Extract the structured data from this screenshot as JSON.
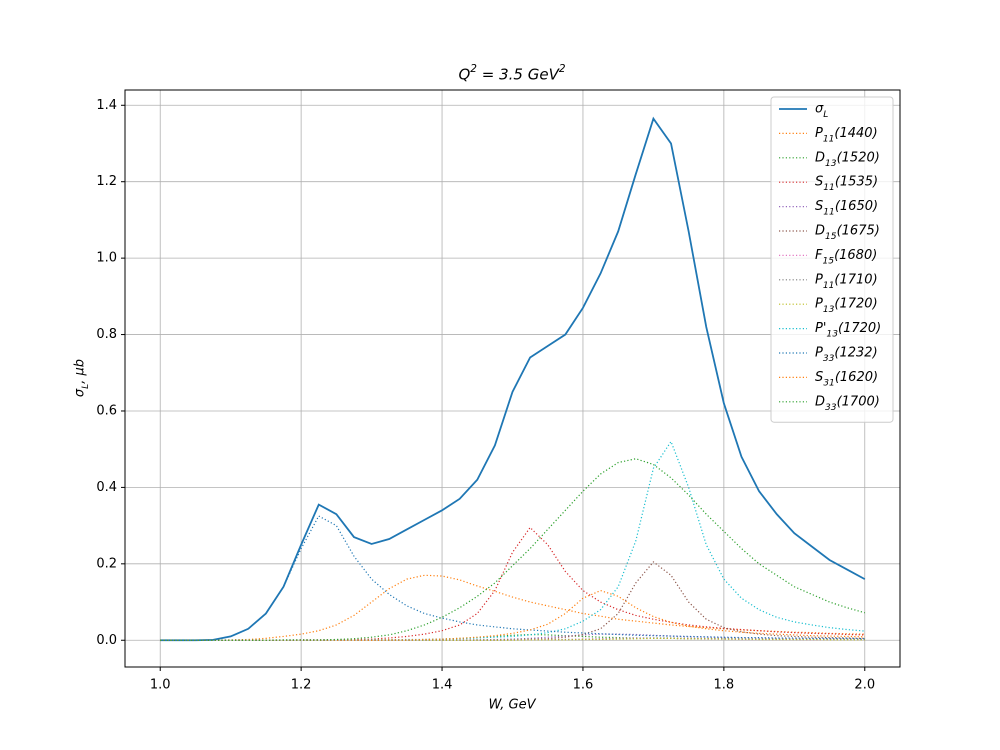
{
  "chart_data": {
    "type": "line",
    "title": "Q^{2} = 3.5 GeV^{2}",
    "x_label": "W, GeV",
    "y_label": "σ_{L}, μb",
    "x": [
      1.0,
      1.025,
      1.05,
      1.075,
      1.1,
      1.125,
      1.15,
      1.175,
      1.2,
      1.225,
      1.25,
      1.275,
      1.3,
      1.325,
      1.35,
      1.375,
      1.4,
      1.425,
      1.45,
      1.475,
      1.5,
      1.525,
      1.55,
      1.575,
      1.6,
      1.625,
      1.65,
      1.675,
      1.7,
      1.725,
      1.75,
      1.775,
      1.8,
      1.825,
      1.85,
      1.875,
      1.9,
      1.925,
      1.95,
      1.975,
      2.0
    ],
    "xlim": [
      0.95,
      2.05
    ],
    "ylim": [
      -0.07,
      1.44
    ],
    "xticks": [
      {
        "value": 1.0,
        "label": "1.0"
      },
      1.2,
      1.4,
      1.6,
      1.8,
      {
        "value": 2.0,
        "label": "2.0"
      }
    ],
    "yticks": [
      {
        "value": 0.0,
        "label": "0.0"
      },
      0.2,
      0.4,
      0.6,
      0.8,
      {
        "value": 1.0,
        "label": "1.0"
      },
      1.2,
      1.4
    ],
    "grid": true,
    "legend": "upper right",
    "series": [
      {
        "name": "σ_{L}",
        "color": "#1f77b4",
        "style": "solid",
        "values": [
          0,
          0,
          0,
          0.001,
          0.01,
          0.03,
          0.07,
          0.14,
          0.25,
          0.355,
          0.33,
          0.27,
          0.252,
          0.265,
          0.29,
          0.315,
          0.34,
          0.37,
          0.42,
          0.51,
          0.65,
          0.74,
          0.77,
          0.8,
          0.87,
          0.96,
          1.07,
          1.22,
          1.365,
          1.3,
          1.07,
          0.82,
          0.62,
          0.48,
          0.39,
          0.33,
          0.28,
          0.245,
          0.21,
          0.185,
          0.16
        ]
      },
      {
        "name": "P_{11}(1440)",
        "color": "#ff7f0e",
        "style": "dotted",
        "values": [
          0,
          0,
          0,
          0,
          0.001,
          0.002,
          0.005,
          0.01,
          0.016,
          0.025,
          0.04,
          0.065,
          0.1,
          0.135,
          0.16,
          0.17,
          0.168,
          0.158,
          0.142,
          0.128,
          0.113,
          0.1,
          0.09,
          0.08,
          0.07,
          0.063,
          0.055,
          0.05,
          0.045,
          0.04,
          0.036,
          0.033,
          0.03,
          0.027,
          0.025,
          0.023,
          0.021,
          0.02,
          0.018,
          0.017,
          0.016
        ]
      },
      {
        "name": "D_{13}(1520)",
        "color": "#2ca02c",
        "style": "dotted",
        "values": [
          0,
          0,
          0,
          0,
          0,
          0,
          0,
          0,
          0,
          0,
          0,
          0,
          0.001,
          0.001,
          0.001,
          0.002,
          0.003,
          0.005,
          0.007,
          0.01,
          0.013,
          0.015,
          0.014,
          0.012,
          0.01,
          0.008,
          0.007,
          0.006,
          0.005,
          0.005,
          0.004,
          0.004,
          0.004,
          0.004,
          0.003,
          0.003,
          0.003,
          0.003,
          0.003,
          0.003,
          0.003
        ]
      },
      {
        "name": "S_{11}(1535)",
        "color": "#d62728",
        "style": "dotted",
        "values": [
          0,
          0,
          0,
          0,
          0,
          0,
          0,
          0,
          0.001,
          0.001,
          0.001,
          0.002,
          0.003,
          0.006,
          0.01,
          0.016,
          0.025,
          0.04,
          0.07,
          0.13,
          0.23,
          0.295,
          0.25,
          0.18,
          0.13,
          0.1,
          0.08,
          0.065,
          0.055,
          0.047,
          0.04,
          0.035,
          0.031,
          0.028,
          0.025,
          0.022,
          0.02,
          0.018,
          0.017,
          0.015,
          0.014
        ]
      },
      {
        "name": "S_{11}(1650)",
        "color": "#9467bd",
        "style": "dotted",
        "values": [
          0,
          0,
          0,
          0,
          0,
          0,
          0,
          0,
          0,
          0,
          0,
          0,
          0,
          0,
          0,
          0,
          0.001,
          0.001,
          0.001,
          0.002,
          0.003,
          0.005,
          0.008,
          0.011,
          0.014,
          0.016,
          0.016,
          0.015,
          0.013,
          0.011,
          0.009,
          0.008,
          0.007,
          0.006,
          0.005,
          0.005,
          0.004,
          0.004,
          0.004,
          0.003,
          0.003
        ]
      },
      {
        "name": "D_{15}(1675)",
        "color": "#8c564b",
        "style": "dotted",
        "values": [
          0,
          0,
          0,
          0,
          0,
          0,
          0,
          0,
          0,
          0,
          0,
          0,
          0,
          0,
          0,
          0,
          0,
          0,
          0.001,
          0.001,
          0.002,
          0.003,
          0.004,
          0.008,
          0.015,
          0.03,
          0.07,
          0.15,
          0.205,
          0.17,
          0.1,
          0.055,
          0.033,
          0.022,
          0.016,
          0.012,
          0.01,
          0.008,
          0.007,
          0.006,
          0.005
        ]
      },
      {
        "name": "F_{15}(1680)",
        "color": "#e377c2",
        "style": "dotted",
        "values": [
          0,
          0,
          0,
          0,
          0,
          0,
          0,
          0,
          0,
          0,
          0,
          0,
          0,
          0,
          0,
          0,
          0,
          0,
          0,
          0,
          0.001,
          0.001,
          0.002,
          0.002,
          0.003,
          0.004,
          0.005,
          0.006,
          0.006,
          0.005,
          0.004,
          0.003,
          0.003,
          0.002,
          0.002,
          0.002,
          0.002,
          0.001,
          0.001,
          0.001,
          0.001
        ]
      },
      {
        "name": "P_{11}(1710)",
        "color": "#7f7f7f",
        "style": "dotted",
        "values": [
          0,
          0,
          0,
          0,
          0,
          0,
          0,
          0,
          0,
          0,
          0,
          0,
          0,
          0,
          0,
          0,
          0,
          0,
          0,
          0,
          0.001,
          0.001,
          0.001,
          0.002,
          0.002,
          0.003,
          0.004,
          0.005,
          0.006,
          0.006,
          0.005,
          0.004,
          0.004,
          0.003,
          0.003,
          0.003,
          0.002,
          0.002,
          0.002,
          0.002,
          0.002
        ]
      },
      {
        "name": "P_{13}(1720)",
        "color": "#bcbd22",
        "style": "dotted",
        "values": [
          0,
          0,
          0,
          0,
          0,
          0,
          0,
          0,
          0,
          0,
          0,
          0,
          0,
          0,
          0,
          0,
          0,
          0,
          0,
          0,
          0,
          0.001,
          0.001,
          0.001,
          0.002,
          0.002,
          0.003,
          0.004,
          0.005,
          0.005,
          0.004,
          0.004,
          0.003,
          0.003,
          0.002,
          0.002,
          0.002,
          0.002,
          0.001,
          0.001,
          0.001
        ]
      },
      {
        "name": "P'_{13}(1720)",
        "color": "#17becf",
        "style": "dotted",
        "values": [
          0,
          0,
          0,
          0,
          0,
          0,
          0,
          0,
          0,
          0,
          0,
          0,
          0.001,
          0.001,
          0.002,
          0.002,
          0.003,
          0.004,
          0.006,
          0.008,
          0.01,
          0.014,
          0.02,
          0.03,
          0.05,
          0.08,
          0.14,
          0.26,
          0.45,
          0.52,
          0.4,
          0.25,
          0.16,
          0.11,
          0.08,
          0.06,
          0.048,
          0.04,
          0.033,
          0.028,
          0.024
        ]
      },
      {
        "name": "P_{33}(1232)",
        "color": "#1f77b4",
        "style": "dotted",
        "values": [
          0,
          0,
          0,
          0.001,
          0.01,
          0.03,
          0.07,
          0.14,
          0.24,
          0.325,
          0.3,
          0.22,
          0.16,
          0.12,
          0.09,
          0.07,
          0.058,
          0.048,
          0.04,
          0.035,
          0.03,
          0.027,
          0.024,
          0.021,
          0.019,
          0.017,
          0.015,
          0.013,
          0.012,
          0.011,
          0.01,
          0.009,
          0.008,
          0.007,
          0.007,
          0.006,
          0.006,
          0.005,
          0.005,
          0.005,
          0.004
        ]
      },
      {
        "name": "S_{31}(1620)",
        "color": "#ff7f0e",
        "style": "dotted",
        "values": [
          0,
          0,
          0,
          0,
          0,
          0,
          0,
          0,
          0,
          0,
          0,
          0,
          0,
          0.001,
          0.001,
          0.002,
          0.003,
          0.005,
          0.008,
          0.012,
          0.018,
          0.027,
          0.042,
          0.07,
          0.11,
          0.13,
          0.115,
          0.085,
          0.062,
          0.047,
          0.037,
          0.03,
          0.025,
          0.021,
          0.018,
          0.016,
          0.014,
          0.012,
          0.011,
          0.01,
          0.009
        ]
      },
      {
        "name": "D_{33}(1700)",
        "color": "#2ca02c",
        "style": "dotted",
        "values": [
          0,
          0,
          0,
          0,
          0,
          0,
          0,
          0.001,
          0.001,
          0.001,
          0.002,
          0.004,
          0.008,
          0.014,
          0.025,
          0.04,
          0.06,
          0.085,
          0.115,
          0.15,
          0.195,
          0.24,
          0.29,
          0.34,
          0.39,
          0.435,
          0.465,
          0.475,
          0.46,
          0.425,
          0.38,
          0.33,
          0.285,
          0.24,
          0.2,
          0.17,
          0.14,
          0.12,
          0.1,
          0.085,
          0.072
        ]
      }
    ]
  }
}
